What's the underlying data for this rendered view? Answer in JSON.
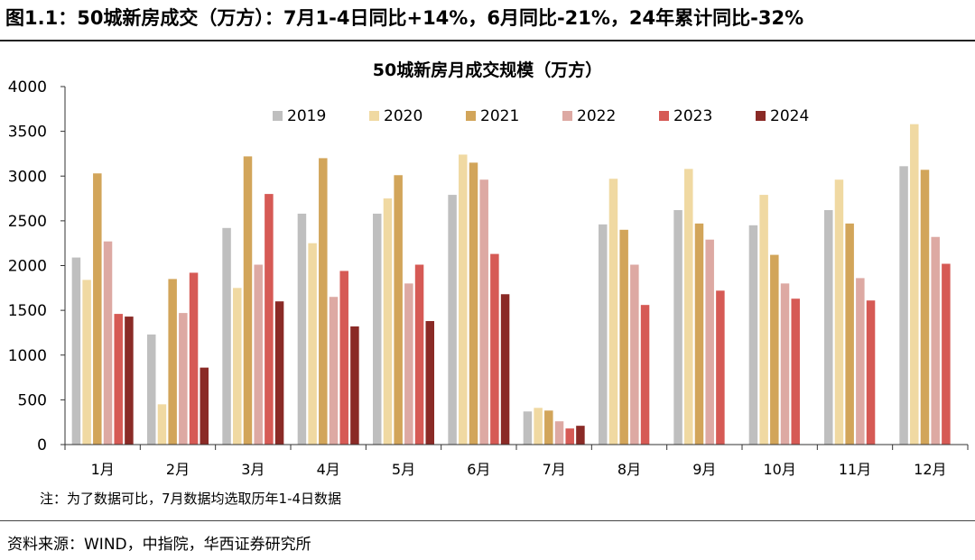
{
  "header": {
    "title": "图1.1：50城新房成交（万方）：7月1-4日同比+14%，6月同比-21%，24年累计同比-32%"
  },
  "source_text": "资料来源：WIND，中指院，华西证券研究所",
  "chart_data": {
    "type": "bar",
    "title": "50城新房月成交规模（万方）",
    "note": "注：为了数据可比，7月数据均选取历年1-4日数据",
    "categories": [
      "1月",
      "2月",
      "3月",
      "4月",
      "5月",
      "6月",
      "7月",
      "8月",
      "9月",
      "10月",
      "11月",
      "12月"
    ],
    "ylim": [
      0,
      4000
    ],
    "yticks": [
      0,
      500,
      1000,
      1500,
      2000,
      2500,
      3000,
      3500,
      4000
    ],
    "legend_position": "top",
    "grid": false,
    "series": [
      {
        "name": "2019",
        "color": "#bfbfbf",
        "values": [
          2090,
          1230,
          2420,
          2580,
          2580,
          2790,
          370,
          2460,
          2620,
          2450,
          2620,
          3110
        ]
      },
      {
        "name": "2020",
        "color": "#f0d9a2",
        "values": [
          1840,
          450,
          1750,
          2250,
          2750,
          3240,
          410,
          2970,
          3080,
          2790,
          2960,
          3580
        ]
      },
      {
        "name": "2021",
        "color": "#d2a55a",
        "values": [
          3030,
          1850,
          3220,
          3200,
          3010,
          3150,
          380,
          2400,
          2470,
          2120,
          2470,
          3070
        ]
      },
      {
        "name": "2022",
        "color": "#dda9a3",
        "values": [
          2270,
          1470,
          2010,
          1650,
          1800,
          2960,
          260,
          2010,
          2290,
          1800,
          1860,
          2320
        ]
      },
      {
        "name": "2023",
        "color": "#d65a55",
        "values": [
          1460,
          1920,
          2800,
          1940,
          2010,
          2130,
          180,
          1560,
          1720,
          1630,
          1610,
          2020
        ]
      },
      {
        "name": "2024",
        "color": "#8a2a26",
        "values": [
          1430,
          860,
          1600,
          1320,
          1380,
          1680,
          210,
          null,
          null,
          null,
          null,
          null
        ]
      }
    ]
  }
}
